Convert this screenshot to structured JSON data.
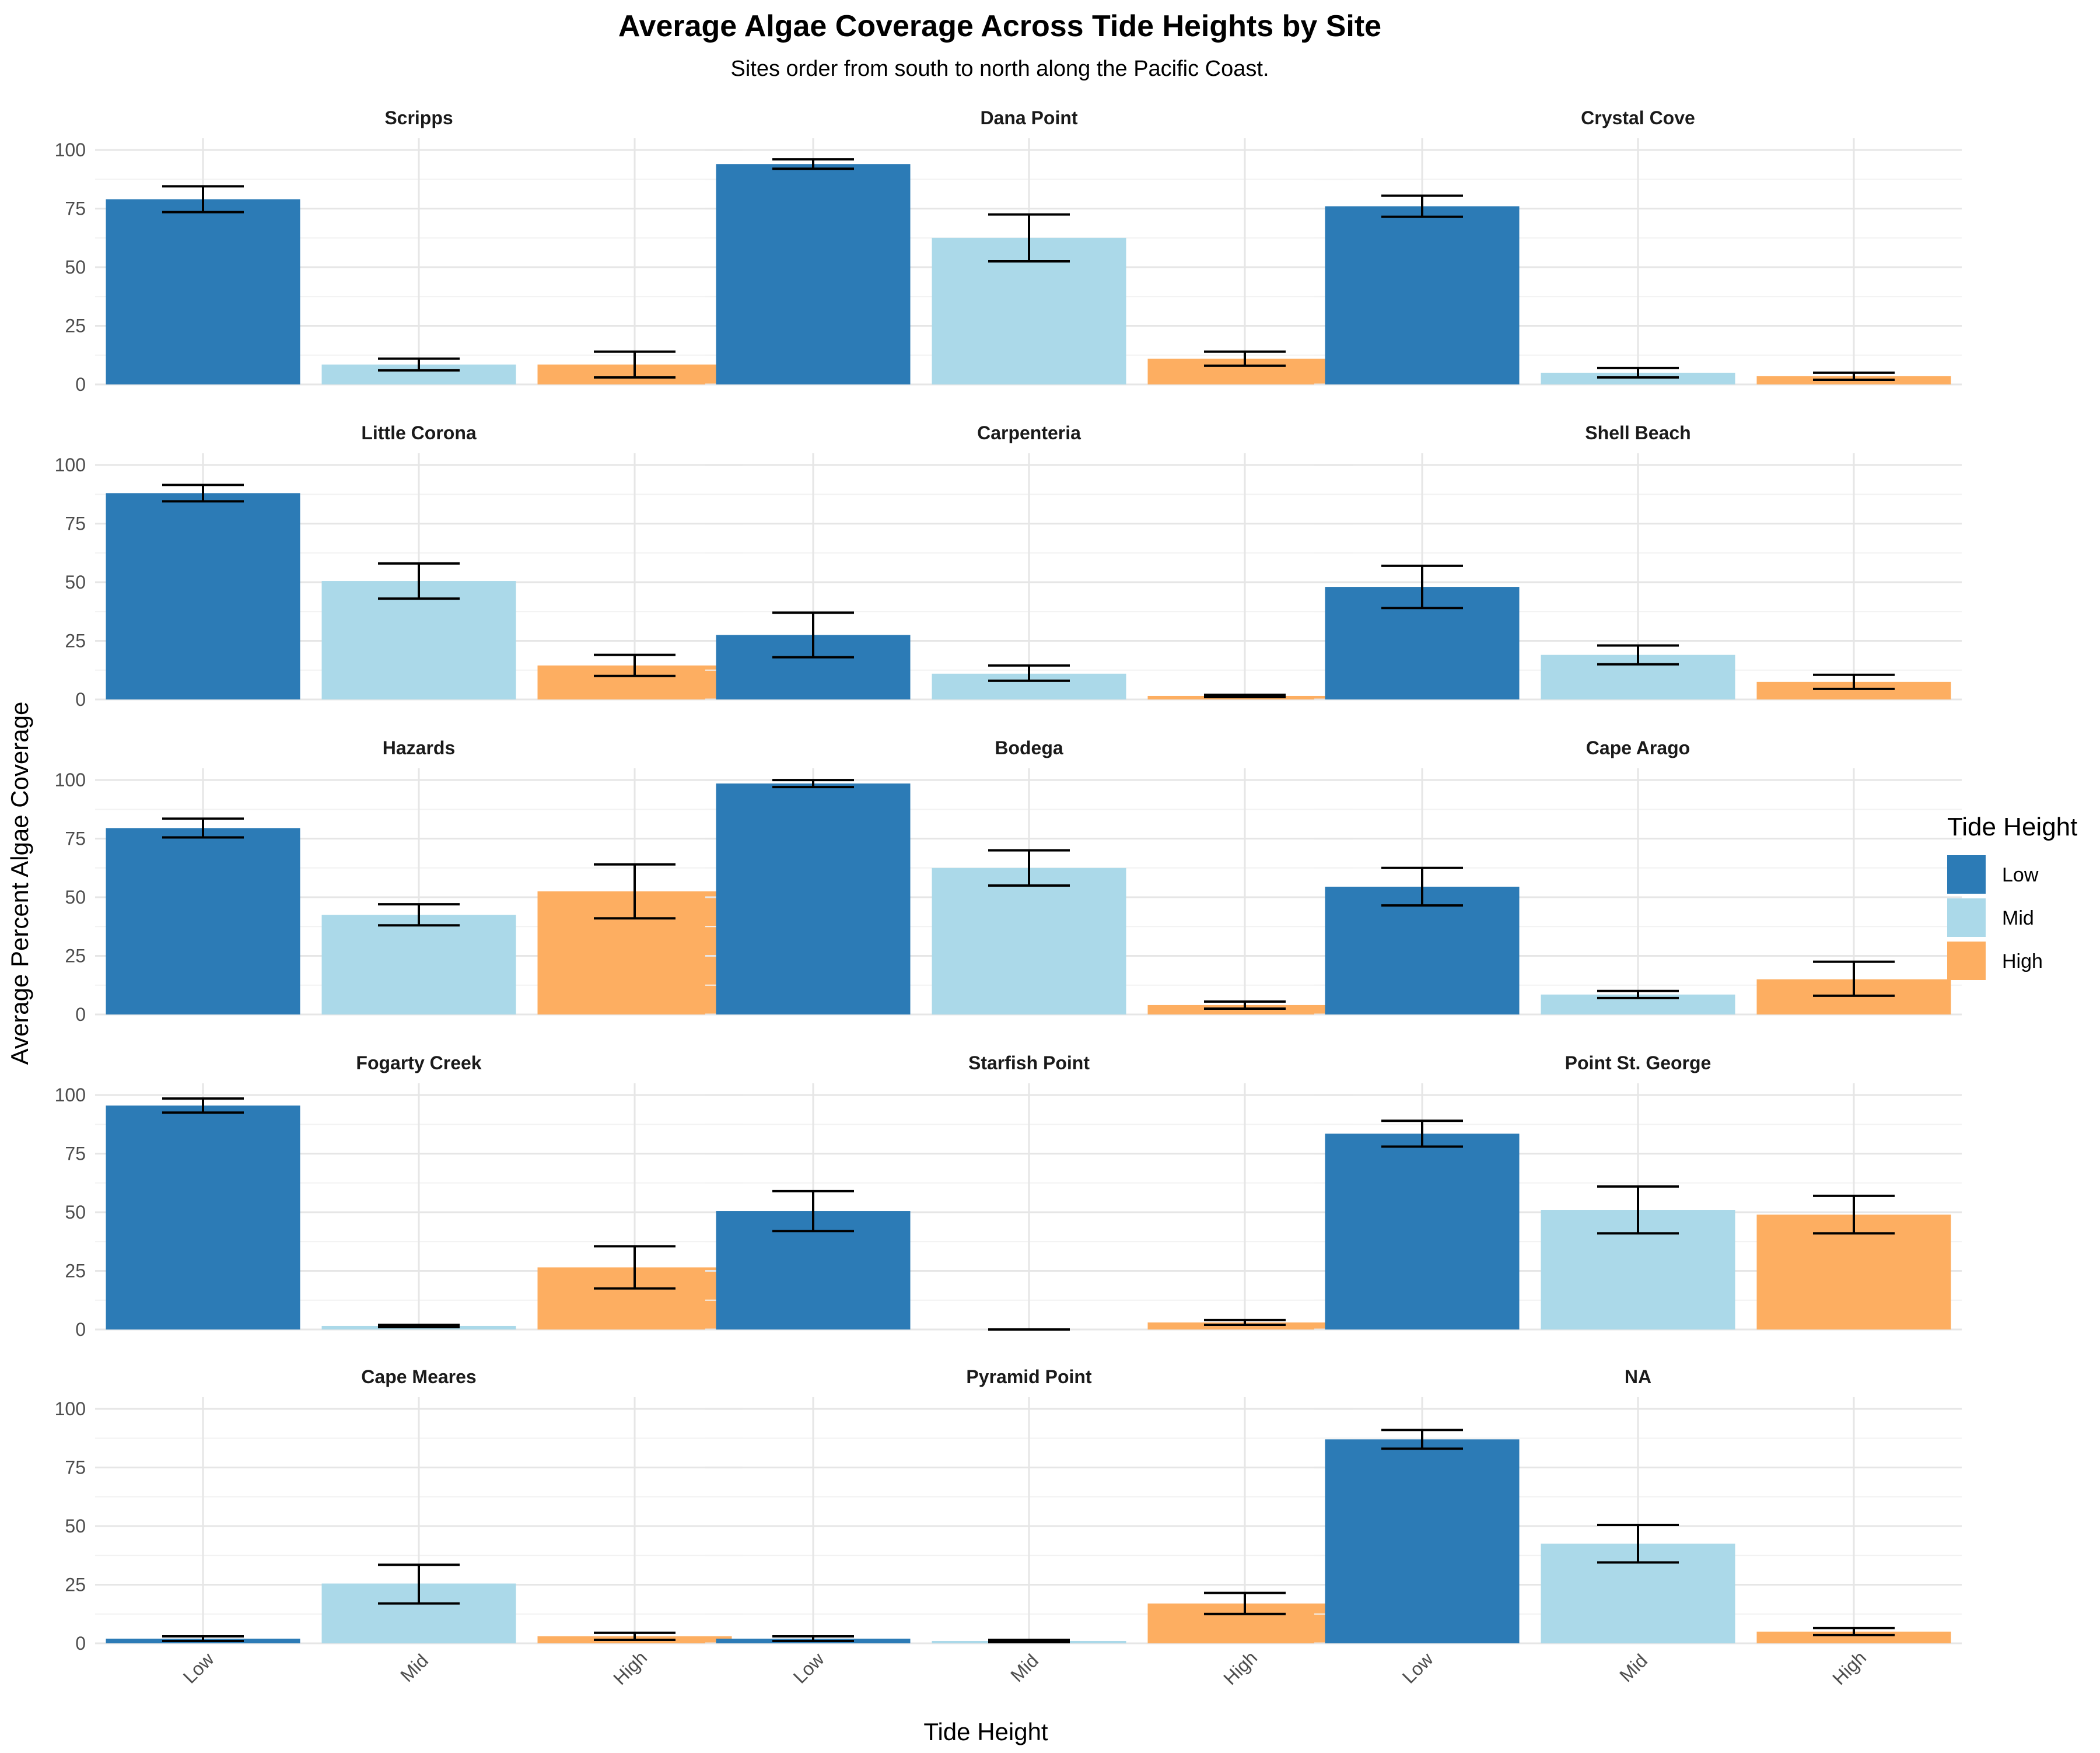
{
  "chart_data": {
    "type": "bar",
    "title": "Average Algae Coverage Across Tide Heights by Site",
    "subtitle": "Sites order from south to north along the Pacific Coast.",
    "xlabel": "Tide Height",
    "ylabel": "Average Percent Algae Coverage",
    "ylim": [
      0,
      105
    ],
    "yticks": [
      0,
      25,
      50,
      75,
      100
    ],
    "categories": [
      "Low",
      "Mid",
      "High"
    ],
    "legend": {
      "title": "Tide Height",
      "position": "right",
      "items": [
        {
          "label": "Low",
          "color": "#2c7bb6"
        },
        {
          "label": "Mid",
          "color": "#abd9e9"
        },
        {
          "label": "High",
          "color": "#fdae61"
        }
      ]
    },
    "grid": true,
    "error_bars": true,
    "facets": [
      {
        "site": "Scripps",
        "values": [
          79,
          8.5,
          8.5
        ],
        "error_low": [
          73.5,
          6,
          3
        ],
        "error_high": [
          84.5,
          11,
          14
        ]
      },
      {
        "site": "Dana Point",
        "values": [
          94,
          62.5,
          11
        ],
        "error_low": [
          92,
          52.5,
          8
        ],
        "error_high": [
          96,
          72.5,
          14
        ]
      },
      {
        "site": "Crystal Cove",
        "values": [
          76,
          5,
          3.5
        ],
        "error_low": [
          71.5,
          3,
          2
        ],
        "error_high": [
          80.5,
          7,
          5
        ]
      },
      {
        "site": "Little Corona",
        "values": [
          88,
          50.5,
          14.5
        ],
        "error_low": [
          84.5,
          43,
          10
        ],
        "error_high": [
          91.5,
          58,
          19
        ]
      },
      {
        "site": "Carpenteria",
        "values": [
          27.5,
          11,
          1.5
        ],
        "error_low": [
          18,
          8,
          1
        ],
        "error_high": [
          37,
          14.5,
          2
        ]
      },
      {
        "site": "Shell Beach",
        "values": [
          48,
          19,
          7.5
        ],
        "error_low": [
          39,
          15,
          4.5
        ],
        "error_high": [
          57,
          23,
          10.5
        ]
      },
      {
        "site": "Hazards",
        "values": [
          79.5,
          42.5,
          52.5
        ],
        "error_low": [
          75.5,
          38,
          41
        ],
        "error_high": [
          83.5,
          47,
          64
        ]
      },
      {
        "site": "Bodega",
        "values": [
          98.5,
          62.5,
          4
        ],
        "error_low": [
          97,
          55,
          2.5
        ],
        "error_high": [
          100,
          70,
          5.5
        ]
      },
      {
        "site": "Cape Arago",
        "values": [
          54.5,
          8.5,
          15
        ],
        "error_low": [
          46.5,
          7,
          8
        ],
        "error_high": [
          62.5,
          10,
          22.5
        ]
      },
      {
        "site": "Fogarty Creek",
        "values": [
          95.5,
          1.5,
          26.5
        ],
        "error_low": [
          92.5,
          1,
          17.5
        ],
        "error_high": [
          98.5,
          2,
          35.5
        ]
      },
      {
        "site": "Starfish Point",
        "values": [
          50.5,
          0,
          3
        ],
        "error_low": [
          42,
          0,
          2
        ],
        "error_high": [
          59,
          0,
          4
        ]
      },
      {
        "site": "Point St. George",
        "values": [
          83.5,
          51,
          49
        ],
        "error_low": [
          78,
          41,
          41
        ],
        "error_high": [
          89,
          61,
          57
        ]
      },
      {
        "site": "Cape Meares",
        "values": [
          2,
          25.5,
          3
        ],
        "error_low": [
          1,
          17,
          1.5
        ],
        "error_high": [
          3,
          33.5,
          4.5
        ]
      },
      {
        "site": "Pyramid Point",
        "values": [
          2,
          1,
          17
        ],
        "error_low": [
          1,
          0.5,
          12.5
        ],
        "error_high": [
          3,
          1.5,
          21.5
        ]
      },
      {
        "site": "NA",
        "values": [
          87,
          42.5,
          5
        ],
        "error_low": [
          83,
          34.5,
          3.5
        ],
        "error_high": [
          91,
          50.5,
          6.5
        ]
      }
    ]
  }
}
